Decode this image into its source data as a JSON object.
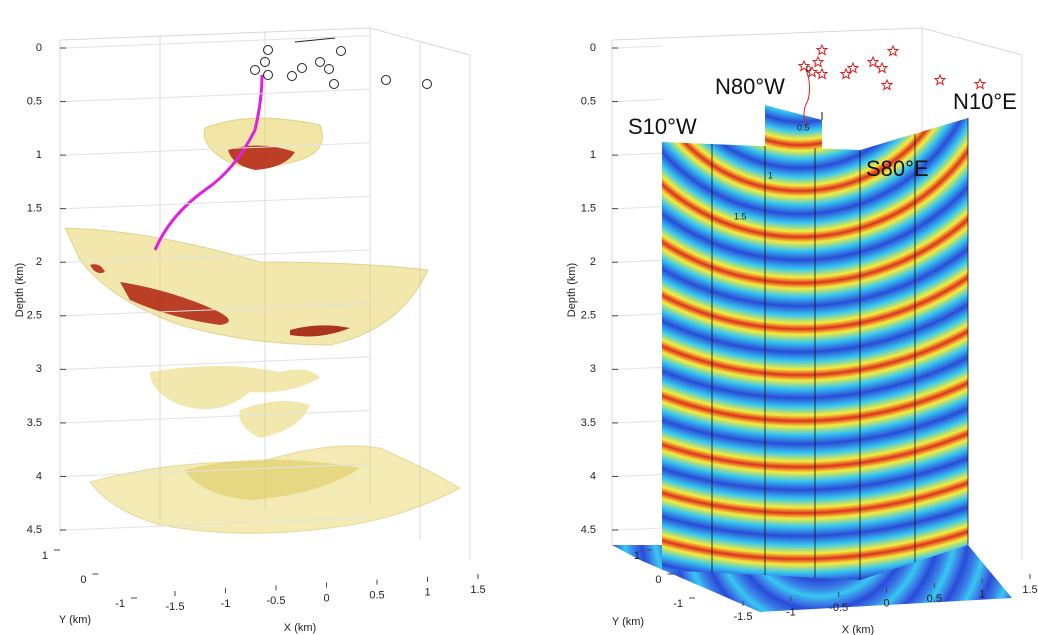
{
  "chart_data": [
    {
      "type": "isosurface-3d",
      "zlabel": "Depth (km)",
      "xlabel": "X (km)",
      "ylabel": "Y (km)",
      "zlim": [
        0,
        4.5
      ],
      "zticks": [
        0,
        0.5,
        1,
        1.5,
        2,
        2.5,
        3,
        3.5,
        4,
        4.5
      ],
      "xlim": [
        -1.5,
        1.5
      ],
      "xticks": [
        -1.5,
        -1,
        -0.5,
        0,
        0.5,
        1,
        1.5
      ],
      "ylim": [
        -1,
        1
      ],
      "yticks": [
        -1,
        0,
        1
      ],
      "grid": true
    },
    {
      "type": "slice-3d",
      "zlabel": "Depth (km)",
      "xlabel": "X (km)",
      "ylabel": "Y (km)",
      "zlim": [
        0,
        4.5
      ],
      "zticks": [
        0,
        0.5,
        1,
        1.5,
        2,
        2.5,
        3,
        3.5,
        4,
        4.5
      ],
      "xlim": [
        -1.5,
        1.5
      ],
      "xticks": [
        -1.5,
        -1,
        -0.5,
        0,
        0.5,
        1,
        1.5
      ],
      "ylim": [
        -1,
        1
      ],
      "yticks": [
        -1,
        0,
        1
      ],
      "grid": true,
      "slice_labels": [
        "N80°W",
        "S10°W",
        "S80°E",
        "N10°E"
      ],
      "contour_labels": [
        0,
        0.5,
        1,
        1.5
      ]
    }
  ]
}
